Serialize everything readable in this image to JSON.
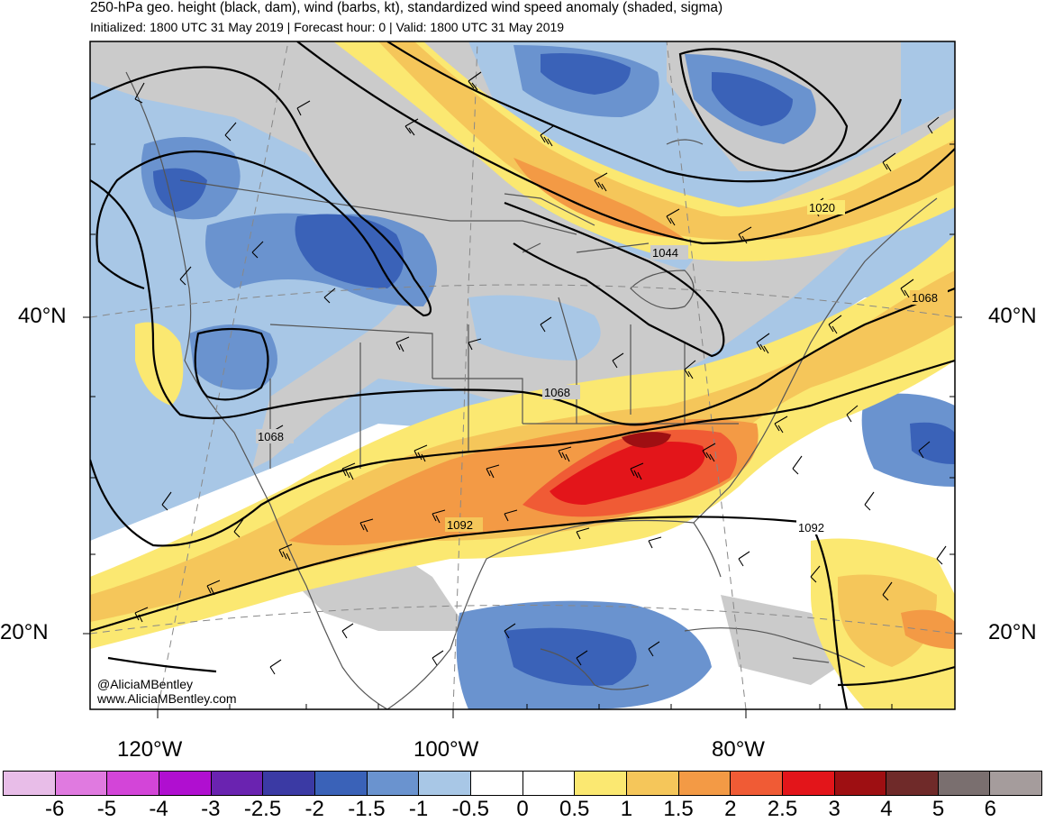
{
  "header": {
    "title": "250-hPa geo. height (black, dam), wind (barbs, kt), standardized wind speed anomaly (shaded, sigma)",
    "subtitle": "Initialized: 1800 UTC 31 May 2019 | Forecast hour: 0 | Valid: 1800 UTC 31 May 2019"
  },
  "map": {
    "lat_labels": [
      "40°N",
      "20°N"
    ],
    "lon_labels": [
      "120°W",
      "100°W",
      "80°W"
    ],
    "contour_labels": [
      "1020",
      "1044",
      "1068",
      "1068",
      "1068",
      "1092",
      "1092"
    ],
    "credit_handle": "@AliciaMBentley",
    "credit_url": "www.AliciaMBentley.com"
  },
  "colorbar": {
    "colors": [
      "#e8bde8",
      "#e07ae0",
      "#d345d8",
      "#b00fd0",
      "#6a23b0",
      "#3b3aa4",
      "#3a62b8",
      "#6a93cf",
      "#a8c7e6",
      "#ffffff",
      "#ffffff",
      "#fbe871",
      "#f5c65a",
      "#f39a45",
      "#f05b35",
      "#e3151a",
      "#9e0f12",
      "#6f2a29",
      "#7a6f6f",
      "#a59c9c"
    ],
    "labels": [
      "-6",
      "-5",
      "-4",
      "-3",
      "-2.5",
      "-2",
      "-1.5",
      "-1",
      "-0.5",
      "0",
      "0.5",
      "1",
      "1.5",
      "2",
      "2.5",
      "3",
      "4",
      "5",
      "6"
    ]
  },
  "palette": {
    "frame": "#000000",
    "neutral_gray": "#cbcbcb",
    "neg_light": "#a8c7e6",
    "neg_mid": "#6a93cf",
    "neg_dark": "#3a62b8",
    "pos_yellow": "#fbe871",
    "pos_gold": "#f5c65a",
    "pos_orange": "#f39a45",
    "pos_red": "#f05b35",
    "pos_dark_red": "#e3151a",
    "coast": "#555555"
  }
}
